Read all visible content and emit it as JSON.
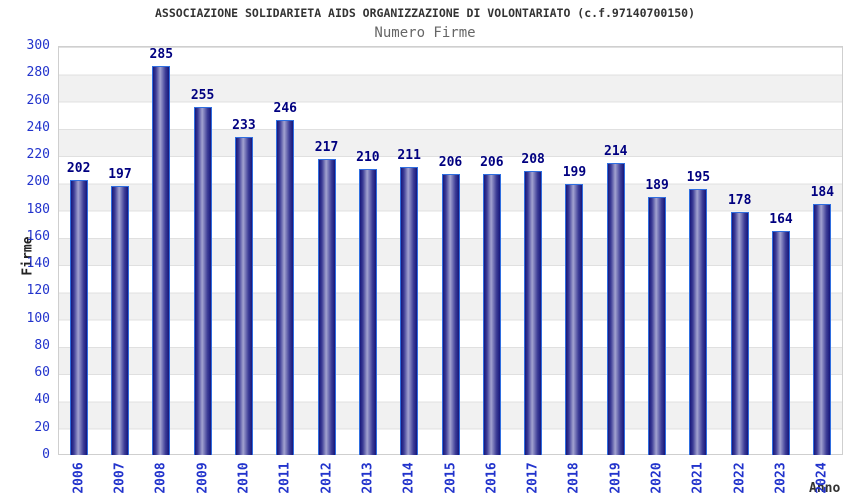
{
  "chart_data": {
    "type": "bar",
    "title": "ASSOCIAZIONE SOLIDARIETA AIDS ORGANIZZAZIONE DI VOLONTARIATO (c.f.97140700150)",
    "subtitle": "Numero Firme",
    "xlabel": "Anno",
    "ylabel": "Firme",
    "categories": [
      "2006",
      "2007",
      "2008",
      "2009",
      "2010",
      "2011",
      "2012",
      "2013",
      "2014",
      "2015",
      "2016",
      "2017",
      "2018",
      "2019",
      "2020",
      "2021",
      "2022",
      "2023",
      "2024"
    ],
    "values": [
      202,
      197,
      285,
      255,
      233,
      246,
      217,
      210,
      211,
      206,
      206,
      208,
      199,
      214,
      189,
      195,
      178,
      164,
      184
    ],
    "ylim": [
      0,
      300
    ],
    "ytick_step": 20,
    "grid": true,
    "legend_position": "none",
    "background_bands": "alternating white and light-gray horizontal stripes every 20 units",
    "colors": {
      "bar_border": "#2f6ee0",
      "bar_edge_dark": "#17177b",
      "bar_center_light": "#a2a2d0",
      "value_label": "#000080",
      "tick_label": "#2233cc",
      "band_gray": "#f1f1f1",
      "gridline": "#e0e0e0",
      "title_text": "#333333",
      "subtitle_text": "#666666"
    }
  }
}
